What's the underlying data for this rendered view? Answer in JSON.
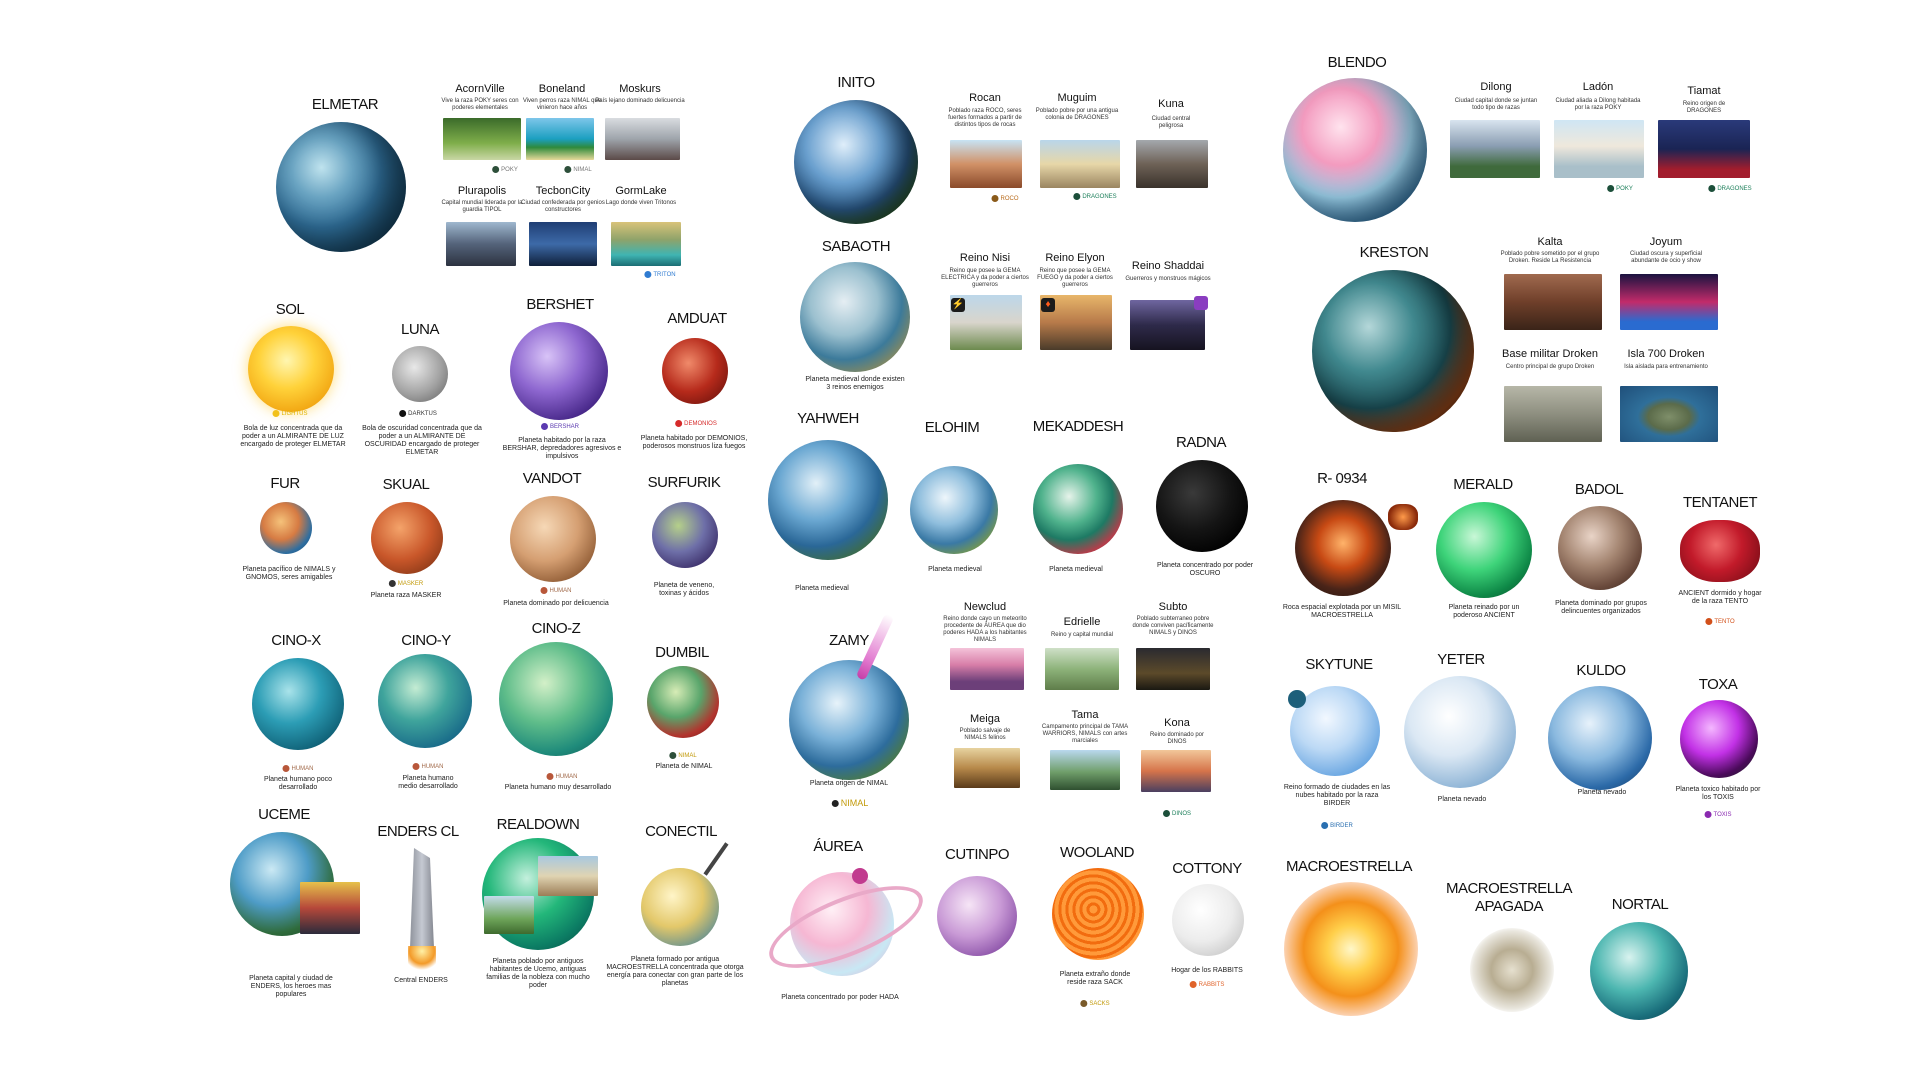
{
  "planets": {
    "elmetar": {
      "name": "ELMETAR"
    },
    "sol": {
      "name": "SOL",
      "race": "LIGHTUS",
      "desc": "Bola de luz concentrada que da poder a un ALMIRANTE DE LUZ encargado de proteger ELMETAR"
    },
    "luna": {
      "name": "LUNA",
      "race": "DARKTUS",
      "desc": "Bola de oscuridad concentrada que da poder a un ALMIRANTE DE OSCURIDAD encargado de proteger ELMETAR"
    },
    "bershet": {
      "name": "BERSHET",
      "race": "BERSHAR",
      "desc": "Planeta habitado por la raza BERSHAR, depredadores agresivos e impulsivos"
    },
    "amduat": {
      "name": "AMDUAT",
      "race": "DEMONIOS",
      "desc": "Planeta habitado por DEMONIOS, poderosos monstruos liza fuegos"
    },
    "fur": {
      "name": "FUR",
      "desc": "Planeta pacífico de NIMALS y GNOMOS, seres amigables"
    },
    "skual": {
      "name": "SKUAL",
      "race": "MASKER",
      "desc": "Planeta raza MASKER"
    },
    "vandot": {
      "name": "VANDOT",
      "race": "HUMAN",
      "desc": "Planeta dominado por delicuencia"
    },
    "surfurik": {
      "name": "SURFURIK",
      "desc": "Planeta de veneno, toxinas y ácidos"
    },
    "cinox": {
      "name": "CINO-X",
      "race": "HUMAN",
      "desc": "Planeta humano poco desarrollado"
    },
    "cinoy": {
      "name": "CINO-Y",
      "race": "HUMAN",
      "desc": "Planeta humano medio desarrollado"
    },
    "cinoz": {
      "name": "CINO-Z",
      "race": "HUMAN",
      "desc": "Planeta humano muy desarrollado"
    },
    "dumbil": {
      "name": "DUMBIL",
      "race": "NIMAL",
      "desc": "Planeta de NIMAL"
    },
    "uceme": {
      "name": "UCEME",
      "desc": "Planeta capital y ciudad de ENDERS, los heroes mas populares"
    },
    "enderscl": {
      "name": "ENDERS CL",
      "desc": "Central ENDERS"
    },
    "realdown": {
      "name": "REALDOWN",
      "desc": "Planeta poblado por antiguos habitantes de Ucemo, antiguas familias de la nobleza con mucho poder"
    },
    "conectil": {
      "name": "CONECTIL",
      "desc": "Planeta formado por antigua MACROESTRELLA concentrada que otorga energía para conectar con gran parte de los planetas"
    },
    "inito": {
      "name": "INITO"
    },
    "sabaoth": {
      "name": "SABAOTH",
      "desc": "Planeta medieval donde existen 3 reinos enemigos"
    },
    "yahweh": {
      "name": "YAHWEH",
      "desc": "Planeta medieval"
    },
    "elohim": {
      "name": "ELOHIM",
      "desc": "Planeta medieval"
    },
    "mekaddesh": {
      "name": "MEKADDESH",
      "desc": "Planeta medieval"
    },
    "radna": {
      "name": "RADNA",
      "desc": "Planeta concentrado por poder OSCURO"
    },
    "zamy": {
      "name": "ZAMY",
      "race": "NIMAL",
      "desc": "Planeta origen de NIMAL"
    },
    "aurea": {
      "name": "ÁUREA",
      "desc": "Planeta concentrado por poder HADA"
    },
    "cutinpo": {
      "name": "CUTINPO"
    },
    "wooland": {
      "name": "WOOLAND",
      "race": "SACKS",
      "desc": "Planeta extraño donde reside raza SACK"
    },
    "cottony": {
      "name": "COTTONY",
      "race": "RABBITS",
      "desc": "Hogar de los RABBITS"
    },
    "blendo": {
      "name": "BLENDO"
    },
    "kreston": {
      "name": "KRESTON"
    },
    "r0934": {
      "name": "R- 0934",
      "desc": "Roca espacial explotada por un MISIL MACROESTRELLA"
    },
    "merald": {
      "name": "MERALD",
      "desc": "Planeta reinado por un poderoso ANCIENT"
    },
    "badol": {
      "name": "BADOL",
      "desc": "Planeta dominado por grupos delincuentes organizados"
    },
    "tentanet": {
      "name": "TENTANET",
      "race": "TENTO",
      "desc": "ANCIENT dormido y hogar de la raza TENTO"
    },
    "skytune": {
      "name": "SKYTUNE",
      "race": "BIRDER",
      "desc": "Reino formado de ciudades en las nubes habitado por la raza BIRDER"
    },
    "yeter": {
      "name": "YETER",
      "desc": "Planeta nevado"
    },
    "kuldo": {
      "name": "KULDO",
      "desc": "Planeta nevado"
    },
    "toxa": {
      "name": "TOXA",
      "race": "TOXIS",
      "desc": "Planeta toxico habitado por los TOXIS"
    },
    "macroestrella": {
      "name": "MACROESTRELLA"
    },
    "macroapagada": {
      "name": "MACROESTRELLA APAGADA"
    },
    "nortal": {
      "name": "NORTAL"
    }
  },
  "places": {
    "acornville": {
      "name": "AcornVille",
      "desc": "Vive la raza POKY seres con poderes elementales",
      "race": "POKY"
    },
    "boneland": {
      "name": "Boneland",
      "desc": "Viven perros raza NIMAL que vinieron hace años",
      "race": "NIMAL"
    },
    "moskurs": {
      "name": "Moskurs",
      "desc": "País lejano dominado delicuencia"
    },
    "plurapolis": {
      "name": "Plurapolis",
      "desc": "Capital mundial liderada por la guardia TIPOL"
    },
    "tecboncity": {
      "name": "TecbonCity",
      "desc": "Ciudad confederada por genios constructores"
    },
    "gormlake": {
      "name": "GormLake",
      "desc": "Lago donde viven Tritonos",
      "race": "TRITON"
    },
    "rocan": {
      "name": "Rocan",
      "desc": "Poblado raza ROCO, seres fuertes formados a partir de distintos tipos de rocas",
      "race": "ROCO"
    },
    "muguim": {
      "name": "Muguim",
      "desc": "Poblado pobre por una antigua colonia de DRAGONES",
      "race": "DRAGONES"
    },
    "kuna": {
      "name": "Kuna",
      "desc": "Ciudad central peligrosa"
    },
    "reinonisi": {
      "name": "Reino Nisi",
      "desc": "Reino que posee la GEMA ELECTRICA y da poder a ciertos guerreros"
    },
    "reinoelyon": {
      "name": "Reino Elyon",
      "desc": "Reino que posee la GEMA FUEGO y da poder a ciertos guerreros"
    },
    "reinoshaddai": {
      "name": "Reino Shaddai",
      "desc": "Guerreros y monstruos mágicos"
    },
    "newclud": {
      "name": "Newclud",
      "desc": "Reino donde cayo un meteorito procedente de ÁUREA que dio poderes HADA a los habitantes NIMALS"
    },
    "edrielle": {
      "name": "Edrielle",
      "desc": "Reino y capital mundial"
    },
    "subto": {
      "name": "Subto",
      "desc": "Poblado subterraneo pobre donde conviven pacíficamente NIMALS y DINOS"
    },
    "meiga": {
      "name": "Meiga",
      "desc": "Poblado salvaje de NIMALS felinos"
    },
    "tama": {
      "name": "Tama",
      "desc": "Campamento principal de TAMA WARRIORS, NIMALS con artes marciales"
    },
    "kona": {
      "name": "Kona",
      "desc": "Reino dominado por DINOS",
      "race": "DINOS"
    },
    "dilong": {
      "name": "Dilong",
      "desc": "Ciudad capital donde se juntan todo tipo de razas"
    },
    "ladon": {
      "name": "Ladón",
      "desc": "Ciudad aliada a Dilong habitada por la raza POKY",
      "race": "POKY"
    },
    "tiamat": {
      "name": "Tiamat",
      "desc": "Reino origen de DRAGONES",
      "race": "DRAGONES"
    },
    "kalta": {
      "name": "Kalta",
      "desc": "Poblado pobre sometido por el grupo Droken. Reside La Resistencia"
    },
    "joyum": {
      "name": "Joyum",
      "desc": "Ciudad oscura y superficial abundante de ocio y show"
    },
    "basemilitar": {
      "name": "Base militar Droken",
      "desc": "Centro principal de grupo Droken"
    },
    "isla700": {
      "name": "Isla 700 Droken",
      "desc": "Isla aislada para entrenamiento"
    }
  },
  "colors": {
    "text": "#111111",
    "background": "#ffffff"
  }
}
